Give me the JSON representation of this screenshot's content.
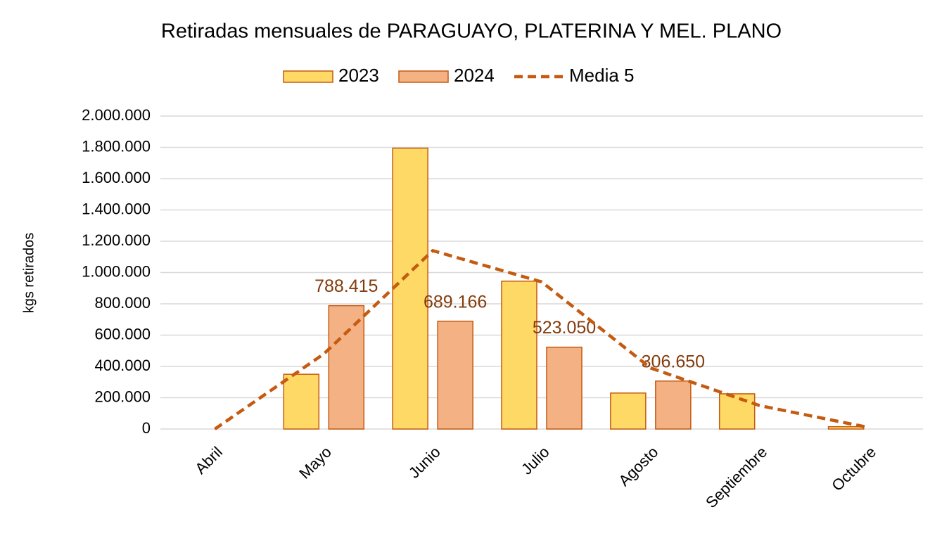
{
  "chart_data": {
    "type": "bar",
    "title": "Retiradas mensuales de PARAGUAYO, PLATERINA Y MEL. PLANO",
    "y_label": "kgs retirados",
    "categories": [
      "Abril",
      "Mayo",
      "Junio",
      "Julio",
      "Agosto",
      "Septiembre",
      "Octubre"
    ],
    "series": [
      {
        "name": "2023",
        "type": "bar",
        "color": "#ffd966",
        "values": [
          null,
          350000,
          1795000,
          945000,
          230000,
          225000,
          15000
        ]
      },
      {
        "name": "2024",
        "type": "bar",
        "color": "#f4b183",
        "values": [
          null,
          788415,
          689166,
          523050,
          306650,
          null,
          null
        ],
        "value_labels": [
          null,
          "788.415",
          "689.166",
          "523.050",
          "306.650",
          null,
          null
        ]
      },
      {
        "name": "Media 5",
        "type": "line",
        "color": "#c55a11",
        "values": [
          0,
          480000,
          1140000,
          940000,
          390000,
          150000,
          10000
        ]
      }
    ],
    "bar_edge_color": "#c55a11",
    "value_label_color": "#843c0c",
    "ylim": [
      0,
      2000000
    ],
    "yticks": [
      0,
      {
        "value": 200000,
        "label": "200.000"
      },
      {
        "value": 400000,
        "label": "400.000"
      },
      {
        "value": 600000,
        "label": "600.000"
      },
      {
        "value": 800000,
        "label": "800.000"
      },
      {
        "value": 1000000,
        "label": "1.000.000"
      },
      {
        "value": 1200000,
        "label": "1.200.000"
      },
      {
        "value": 1400000,
        "label": "1.400.000"
      },
      {
        "value": 1600000,
        "label": "1.600.000"
      },
      {
        "value": 1800000,
        "label": "1.800.000"
      },
      {
        "value": 2000000,
        "label": "2.000.000"
      }
    ],
    "grid": true,
    "legend": "top"
  }
}
